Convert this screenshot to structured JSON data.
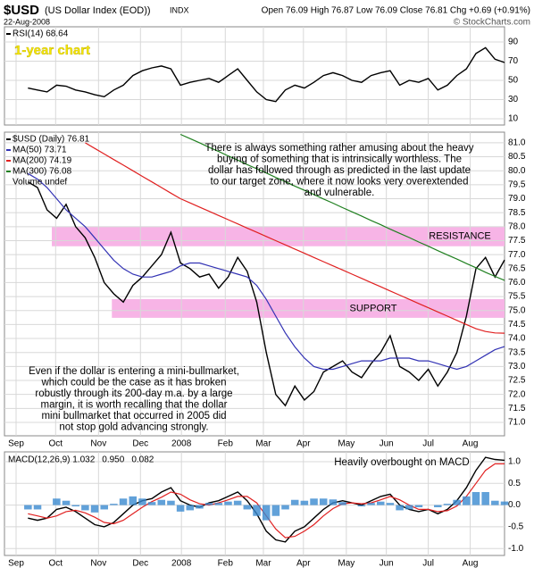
{
  "header": {
    "symbol": "$USD",
    "name": "(US Dollar Index (EOD))",
    "exchange": "INDX",
    "date": "22-Aug-2008",
    "quote": "Open 76.09 High 76.87 Low 76.09 Close 76.81 Chg +0.69 (+0.91%)",
    "source": "© StockCharts.com"
  },
  "chart_data": [
    {
      "type": "line",
      "label": "1-year chart",
      "x": [
        2,
        3,
        4,
        5,
        6,
        7,
        8,
        9,
        10,
        11,
        12,
        13,
        14,
        15,
        16,
        17,
        18,
        19,
        20,
        21,
        22,
        23,
        24,
        25,
        26,
        27,
        28,
        29,
        30,
        31,
        32,
        33,
        34,
        35,
        36,
        37,
        38,
        39,
        40,
        41,
        42,
        43,
        44,
        45,
        46,
        47,
        48,
        49,
        50,
        51,
        52
      ],
      "xlim": [
        0,
        52
      ],
      "ylim": [
        3.5,
        105.8
      ],
      "yticks": [
        10,
        30,
        50,
        70,
        90
      ],
      "grid": true,
      "series": [
        {
          "name": "RSI(14) 68.64",
          "color": "#000000",
          "values": [
            42,
            40,
            38,
            45,
            44,
            40,
            38,
            35,
            33,
            40,
            45,
            55,
            60,
            63,
            65,
            62,
            45,
            48,
            50,
            52,
            48,
            55,
            62,
            50,
            38,
            30,
            28,
            40,
            45,
            42,
            48,
            55,
            58,
            55,
            50,
            48,
            55,
            58,
            60,
            45,
            50,
            48,
            52,
            40,
            45,
            55,
            62,
            78,
            84,
            72,
            68.64
          ]
        }
      ]
    },
    {
      "type": "line",
      "x": [
        2,
        3,
        4,
        5,
        6,
        7,
        8,
        9,
        10,
        11,
        12,
        13,
        14,
        15,
        16,
        17,
        18,
        19,
        20,
        21,
        22,
        23,
        24,
        25,
        26,
        27,
        28,
        29,
        30,
        31,
        32,
        33,
        34,
        35,
        36,
        37,
        38,
        39,
        40,
        41,
        42,
        43,
        44,
        45,
        46,
        47,
        48,
        49,
        50,
        51,
        52
      ],
      "xlim": [
        0,
        52
      ],
      "ylim": [
        70.52,
        81.38
      ],
      "xticks": [
        {
          "value": 0.75,
          "label": "Sep"
        },
        {
          "value": 4.9,
          "label": "Oct"
        },
        {
          "value": 9.4,
          "label": "Nov"
        },
        {
          "value": 13.8,
          "label": "Dec"
        },
        {
          "value": 18.1,
          "label": "2008"
        },
        {
          "value": 22.7,
          "label": "Feb"
        },
        {
          "value": 26.7,
          "label": "Mar"
        },
        {
          "value": 30.9,
          "label": "Apr"
        },
        {
          "value": 35.4,
          "label": "May"
        },
        {
          "value": 39.6,
          "label": "Jun"
        },
        {
          "value": 44,
          "label": "Jul"
        },
        {
          "value": 48.4,
          "label": "Aug"
        }
      ],
      "yticks": [
        {
          "value": 71,
          "label": "71.0"
        },
        71.5,
        {
          "value": 72,
          "label": "72.0"
        },
        72.5,
        {
          "value": 73,
          "label": "73.0"
        },
        73.5,
        {
          "value": 74,
          "label": "74.0"
        },
        74.5,
        {
          "value": 75,
          "label": "75.0"
        },
        75.5,
        {
          "value": 76,
          "label": "76.0"
        },
        76.5,
        {
          "value": 77,
          "label": "77.0"
        },
        77.5,
        {
          "value": 78,
          "label": "78.0"
        },
        78.5,
        {
          "value": 79,
          "label": "79.0"
        },
        79.5,
        {
          "value": 80,
          "label": "80.0"
        },
        80.5,
        {
          "value": 81,
          "label": "81.0"
        }
      ],
      "grid": true,
      "series": [
        {
          "name": "$USD (Daily) 76.81",
          "color": "#000000",
          "values": [
            79.6,
            79.4,
            78.6,
            78.3,
            78.8,
            78.0,
            77.6,
            76.9,
            76.0,
            75.6,
            75.3,
            75.9,
            76.2,
            76.6,
            77.0,
            77.8,
            76.7,
            76.5,
            76.2,
            76.3,
            75.8,
            76.2,
            76.9,
            76.4,
            75.3,
            73.5,
            72.0,
            71.6,
            72.3,
            71.8,
            72.1,
            72.8,
            73.0,
            73.2,
            72.8,
            72.6,
            73.1,
            73.5,
            74.1,
            73.0,
            72.8,
            72.5,
            72.9,
            72.3,
            72.8,
            73.5,
            74.8,
            76.5,
            76.9,
            76.2,
            76.81
          ]
        },
        {
          "name": "MA(50) 73.71",
          "color": "#3232b4",
          "values": [
            79.9,
            79.7,
            79.4,
            79.0,
            78.6,
            78.3,
            78.0,
            77.6,
            77.2,
            76.8,
            76.5,
            76.3,
            76.2,
            76.2,
            76.3,
            76.4,
            76.6,
            76.7,
            76.7,
            76.6,
            76.5,
            76.4,
            76.3,
            76.2,
            75.9,
            75.4,
            74.8,
            74.2,
            73.7,
            73.3,
            73.0,
            72.9,
            72.9,
            73.0,
            73.1,
            73.2,
            73.2,
            73.2,
            73.3,
            73.3,
            73.3,
            73.2,
            73.2,
            73.1,
            73.0,
            72.9,
            73.0,
            73.2,
            73.4,
            73.6,
            73.71
          ]
        },
        {
          "name": "MA(200) 74.19",
          "color": "#e02020",
          "values": [
            null,
            null,
            null,
            null,
            null,
            null,
            81.0,
            80.8,
            80.6,
            80.4,
            80.2,
            80.0,
            79.8,
            79.6,
            79.4,
            79.2,
            79.0,
            78.85,
            78.7,
            78.55,
            78.4,
            78.25,
            78.1,
            77.95,
            77.8,
            77.65,
            77.5,
            77.35,
            77.2,
            77.05,
            76.9,
            76.75,
            76.6,
            76.45,
            76.3,
            76.15,
            76.0,
            75.85,
            75.7,
            75.55,
            75.4,
            75.25,
            75.1,
            74.95,
            74.8,
            74.65,
            74.5,
            74.35,
            74.25,
            74.2,
            74.19
          ]
        },
        {
          "name": "MA(300) 76.08",
          "color": "#208020",
          "values": [
            null,
            null,
            null,
            null,
            null,
            null,
            null,
            null,
            null,
            null,
            null,
            null,
            null,
            null,
            null,
            null,
            81.3,
            81.15,
            81.0,
            80.84,
            80.69,
            80.53,
            80.38,
            80.22,
            80.07,
            79.92,
            79.76,
            79.61,
            79.45,
            79.3,
            79.15,
            78.99,
            78.84,
            78.68,
            78.53,
            78.38,
            78.22,
            78.07,
            77.91,
            77.76,
            77.61,
            77.45,
            77.3,
            77.14,
            76.99,
            76.84,
            76.68,
            76.53,
            76.37,
            76.22,
            76.08
          ]
        }
      ],
      "volume_label": "Volume undef",
      "bands": [
        {
          "label": "RESISTANCE",
          "from": 77.3,
          "to": 78.0,
          "x_start": 4.5,
          "color": "#f7b4e6"
        },
        {
          "label": "SUPPORT",
          "from": 74.74,
          "to": 75.41,
          "x_start": 10.8,
          "color": "#f7b4e6"
        }
      ],
      "annotations": [
        {
          "color": "#d02000",
          "lines": [
            "There is always something rather amusing about the heavy",
            "buying of something that is intrinsically worthless. The",
            "dollar has followed through as predicted in the last update",
            "to our target zone, where it now looks very overextended",
            "and vulnerable."
          ]
        },
        {
          "color": "#d02000",
          "lines": [
            "Even if the dollar is entering a mini-bullmarket,",
            "which could be the case as it has broken",
            "robustly through its 200-day m.a. by a large",
            "margin, it is worth recalling that the dollar",
            "mini bullmarket that occurred in 2005 did",
            "not stop gold advancing strongly."
          ]
        }
      ]
    },
    {
      "type": "line",
      "x": [
        2,
        3,
        4,
        5,
        6,
        7,
        8,
        9,
        10,
        11,
        12,
        13,
        14,
        15,
        16,
        17,
        18,
        19,
        20,
        21,
        22,
        23,
        24,
        25,
        26,
        27,
        28,
        29,
        30,
        31,
        32,
        33,
        34,
        35,
        36,
        37,
        38,
        39,
        40,
        41,
        42,
        43,
        44,
        45,
        46,
        47,
        48,
        49,
        50,
        51,
        52
      ],
      "xlim": [
        0,
        52
      ],
      "ylim": [
        -1.16,
        1.225
      ],
      "xticks": [
        {
          "value": 0.75,
          "label": "Sep"
        },
        {
          "value": 4.9,
          "label": "Oct"
        },
        {
          "value": 9.4,
          "label": "Nov"
        },
        {
          "value": 13.8,
          "label": "Dec"
        },
        {
          "value": 18.1,
          "label": "2008"
        },
        {
          "value": 22.7,
          "label": "Feb"
        },
        {
          "value": 26.7,
          "label": "Mar"
        },
        {
          "value": 30.9,
          "label": "Apr"
        },
        {
          "value": 35.4,
          "label": "May"
        },
        {
          "value": 39.6,
          "label": "Jun"
        },
        {
          "value": 44,
          "label": "Jul"
        },
        {
          "value": 48.4,
          "label": "Aug"
        }
      ],
      "yticks": [
        {
          "value": -1,
          "label": "-1.0"
        },
        -0.5,
        {
          "value": 0,
          "label": "0.0"
        },
        0.5,
        {
          "value": 1,
          "label": "1.0"
        }
      ],
      "grid": true,
      "series": [
        {
          "name": "MACD(12,26,9) 1.032",
          "color": "#000000",
          "values": [
            -0.3,
            -0.35,
            -0.3,
            -0.1,
            -0.05,
            -0.15,
            -0.3,
            -0.45,
            -0.5,
            -0.4,
            -0.2,
            0.0,
            0.1,
            0.15,
            0.3,
            0.4,
            0.1,
            0.0,
            -0.05,
            0.05,
            0.1,
            0.2,
            0.3,
            0.1,
            -0.2,
            -0.6,
            -0.8,
            -0.85,
            -0.6,
            -0.5,
            -0.3,
            -0.1,
            0.05,
            0.1,
            0.05,
            0.0,
            0.1,
            0.2,
            0.25,
            0.0,
            -0.1,
            -0.15,
            -0.1,
            -0.2,
            -0.1,
            0.1,
            0.4,
            0.8,
            1.1,
            1.05,
            1.032
          ]
        },
        {
          "name": "0.950",
          "color": "#e02020",
          "values": [
            -0.2,
            -0.25,
            -0.3,
            -0.25,
            -0.15,
            -0.12,
            -0.18,
            -0.28,
            -0.4,
            -0.43,
            -0.35,
            -0.2,
            -0.05,
            0.08,
            0.18,
            0.3,
            0.25,
            0.12,
            0.03,
            0.0,
            0.05,
            0.12,
            0.2,
            0.2,
            0.05,
            -0.25,
            -0.55,
            -0.75,
            -0.72,
            -0.6,
            -0.45,
            -0.25,
            -0.08,
            0.03,
            0.05,
            0.03,
            0.05,
            0.12,
            0.2,
            0.12,
            0.0,
            -0.1,
            -0.1,
            -0.15,
            -0.13,
            -0.02,
            0.2,
            0.5,
            0.8,
            0.95,
            0.95
          ]
        },
        {
          "name": "0.082",
          "color": "#3a8ad0",
          "type": "bar",
          "values": [
            -0.1,
            -0.1,
            0.0,
            0.15,
            0.1,
            -0.03,
            -0.12,
            -0.17,
            -0.1,
            0.03,
            0.15,
            0.2,
            0.15,
            0.07,
            0.12,
            0.1,
            -0.15,
            -0.12,
            -0.08,
            0.05,
            0.05,
            0.08,
            0.1,
            -0.1,
            -0.25,
            -0.35,
            -0.25,
            -0.1,
            0.12,
            0.1,
            0.15,
            0.15,
            0.13,
            0.07,
            0.0,
            -0.03,
            0.05,
            0.08,
            0.05,
            -0.12,
            -0.1,
            -0.05,
            0.0,
            -0.05,
            0.03,
            0.12,
            0.2,
            0.3,
            0.3,
            0.1,
            0.082
          ]
        }
      ],
      "annotations": [
        {
          "color": "#d02000",
          "lines": [
            "Heavily overbought on MACD"
          ]
        }
      ]
    }
  ]
}
